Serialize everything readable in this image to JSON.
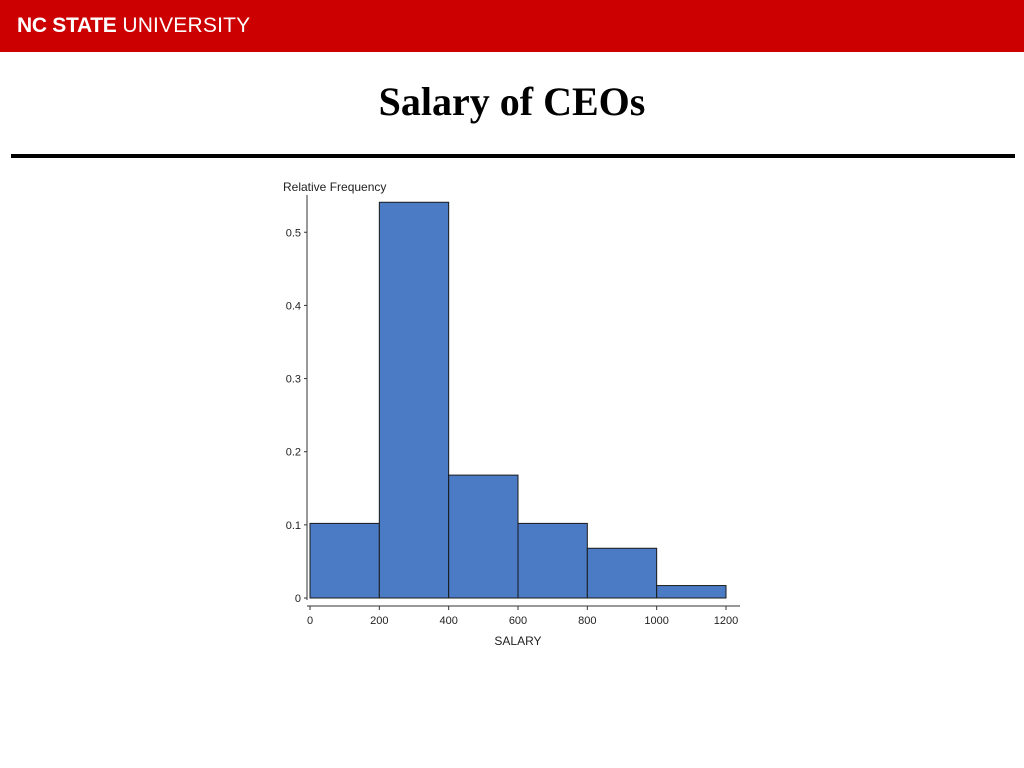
{
  "header": {
    "logo_strong": "NC STATE",
    "logo_light": "UNIVERSITY",
    "color": "#cc0000"
  },
  "slide": {
    "title": "Salary of CEOs"
  },
  "chart_data": {
    "type": "bar",
    "subtype": "histogram",
    "bin_edges": [
      0,
      200,
      400,
      600,
      800,
      1000,
      1200
    ],
    "values": [
      0.102,
      0.541,
      0.168,
      0.102,
      0.068,
      0.017
    ],
    "xlabel": "SALARY",
    "ylabel": "Relative Frequency",
    "xticks": [
      "0",
      "200",
      "400",
      "600",
      "800",
      "1000",
      "1200"
    ],
    "yticks": [
      "0",
      "0.1",
      "0.2",
      "0.3",
      "0.4",
      "0.5"
    ],
    "xlim": [
      0,
      1200
    ],
    "ylim": [
      0,
      0.54
    ],
    "bar_color": "#4a7bc4",
    "grid": false
  }
}
